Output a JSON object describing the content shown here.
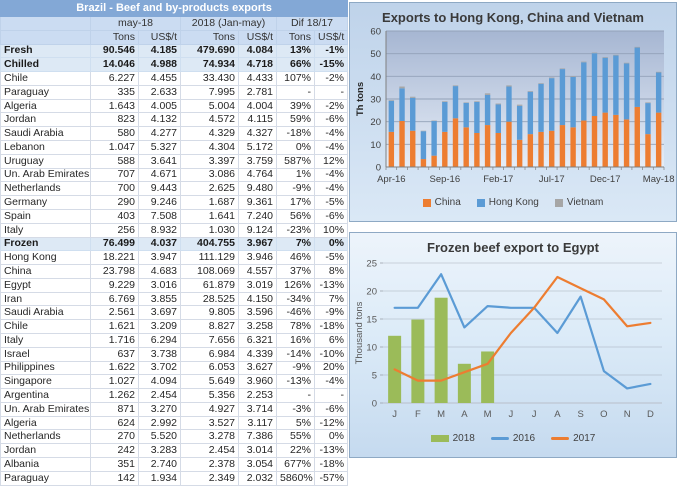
{
  "theme": {
    "table_title_bg": "#83A8D6",
    "table_header_bg": "#CBDCF2",
    "table_summary_bg": "#DDE9F5",
    "table_border": "#D5DBE6",
    "panel_border": "#8EA9C4",
    "panel1_bg_top": "#BFD3EA",
    "panel1_bg_bottom": "#DAE8F6",
    "plot1_bg_top": "#A6B6D2",
    "plot1_bg_bottom": "#E6EDF7",
    "panel2_bg_top": "#EDF4FB",
    "panel2_bg_bottom": "#C5DAEF"
  },
  "table": {
    "title": "Brazil - Beef and by-products exports",
    "column_groups": [
      "may-18",
      "2018 (Jan-may)",
      "Dif 18/17"
    ],
    "unit_headers": [
      "Tons",
      "US$/t",
      "Tons",
      "US$/t",
      "Tons",
      "US$/t"
    ],
    "rows": [
      {
        "label": "Fresh",
        "type": "summary",
        "values": [
          "90.546",
          "4.185",
          "479.690",
          "4.084",
          "13%",
          "-1%"
        ]
      },
      {
        "label": "Chilled",
        "type": "summary",
        "values": [
          "14.046",
          "4.988",
          "74.934",
          "4.718",
          "66%",
          "-15%"
        ]
      },
      {
        "label": "Chile",
        "type": "country",
        "values": [
          "6.227",
          "4.455",
          "33.430",
          "4.433",
          "107%",
          "-2%"
        ]
      },
      {
        "label": "Paraguay",
        "type": "country",
        "values": [
          "335",
          "2.633",
          "7.995",
          "2.781",
          "-",
          "-"
        ]
      },
      {
        "label": "Algeria",
        "type": "country",
        "values": [
          "1.643",
          "4.005",
          "5.004",
          "4.004",
          "39%",
          "-2%"
        ]
      },
      {
        "label": "Jordan",
        "type": "country",
        "values": [
          "823",
          "4.132",
          "4.572",
          "4.115",
          "59%",
          "-6%"
        ]
      },
      {
        "label": "Saudi Arabia",
        "type": "country",
        "values": [
          "580",
          "4.277",
          "4.329",
          "4.327",
          "-18%",
          "-4%"
        ]
      },
      {
        "label": "Lebanon",
        "type": "country",
        "values": [
          "1.047",
          "5.327",
          "4.304",
          "5.172",
          "0%",
          "-4%"
        ]
      },
      {
        "label": "Uruguay",
        "type": "country",
        "values": [
          "588",
          "3.641",
          "3.397",
          "3.759",
          "587%",
          "12%"
        ]
      },
      {
        "label": "Un. Arab Emirates",
        "type": "country",
        "values": [
          "707",
          "4.671",
          "3.086",
          "4.764",
          "1%",
          "-4%"
        ]
      },
      {
        "label": "Netherlands",
        "type": "country",
        "values": [
          "700",
          "9.443",
          "2.625",
          "9.480",
          "-9%",
          "-4%"
        ]
      },
      {
        "label": "Germany",
        "type": "country",
        "values": [
          "290",
          "9.246",
          "1.687",
          "9.361",
          "17%",
          "-5%"
        ]
      },
      {
        "label": "Spain",
        "type": "country",
        "values": [
          "403",
          "7.508",
          "1.641",
          "7.240",
          "56%",
          "-6%"
        ]
      },
      {
        "label": "Italy",
        "type": "country",
        "values": [
          "256",
          "8.932",
          "1.030",
          "9.124",
          "-23%",
          "10%"
        ]
      },
      {
        "label": "Frozen",
        "type": "summary",
        "values": [
          "76.499",
          "4.037",
          "404.755",
          "3.967",
          "7%",
          "0%"
        ]
      },
      {
        "label": "Hong Kong",
        "type": "country",
        "values": [
          "18.221",
          "3.947",
          "111.129",
          "3.946",
          "46%",
          "-5%"
        ]
      },
      {
        "label": "China",
        "type": "country",
        "values": [
          "23.798",
          "4.683",
          "108.069",
          "4.557",
          "37%",
          "8%"
        ]
      },
      {
        "label": "Egypt",
        "type": "country",
        "values": [
          "9.229",
          "3.016",
          "61.879",
          "3.019",
          "126%",
          "-13%"
        ]
      },
      {
        "label": "Iran",
        "type": "country",
        "values": [
          "6.769",
          "3.855",
          "28.525",
          "4.150",
          "-34%",
          "7%"
        ]
      },
      {
        "label": "Saudi Arabia",
        "type": "country",
        "values": [
          "2.561",
          "3.697",
          "9.805",
          "3.596",
          "-46%",
          "-9%"
        ]
      },
      {
        "label": "Chile",
        "type": "country",
        "values": [
          "1.621",
          "3.209",
          "8.827",
          "3.258",
          "78%",
          "-18%"
        ]
      },
      {
        "label": "Italy",
        "type": "country",
        "values": [
          "1.716",
          "6.294",
          "7.656",
          "6.321",
          "16%",
          "6%"
        ]
      },
      {
        "label": "Israel",
        "type": "country",
        "values": [
          "637",
          "3.738",
          "6.984",
          "4.339",
          "-14%",
          "-10%"
        ]
      },
      {
        "label": "Philippines",
        "type": "country",
        "values": [
          "1.622",
          "3.702",
          "6.053",
          "3.627",
          "-9%",
          "20%"
        ]
      },
      {
        "label": "Singapore",
        "type": "country",
        "values": [
          "1.027",
          "4.094",
          "5.649",
          "3.960",
          "-13%",
          "-4%"
        ]
      },
      {
        "label": "Argentina",
        "type": "country",
        "values": [
          "1.262",
          "2.454",
          "5.356",
          "2.253",
          "-",
          "-"
        ]
      },
      {
        "label": "Un. Arab Emirates",
        "type": "country",
        "values": [
          "871",
          "3.270",
          "4.927",
          "3.714",
          "-3%",
          "-6%"
        ]
      },
      {
        "label": "Algeria",
        "type": "country",
        "values": [
          "624",
          "2.992",
          "3.527",
          "3.117",
          "5%",
          "-12%"
        ]
      },
      {
        "label": "Netherlands",
        "type": "country",
        "values": [
          "270",
          "5.520",
          "3.278",
          "7.386",
          "55%",
          "0%"
        ]
      },
      {
        "label": "Jordan",
        "type": "country",
        "values": [
          "242",
          "3.283",
          "2.454",
          "3.014",
          "22%",
          "-13%"
        ]
      },
      {
        "label": "Albania",
        "type": "country",
        "values": [
          "351",
          "2.740",
          "2.378",
          "3.054",
          "677%",
          "-18%"
        ]
      },
      {
        "label": "Paraguay",
        "type": "country",
        "values": [
          "142",
          "1.934",
          "2.349",
          "2.032",
          "5860%",
          "-57%"
        ]
      }
    ]
  },
  "chart_data": [
    {
      "type": "bar",
      "subtype": "stacked",
      "title": "Exports to Hong Kong, China and Vietnam",
      "xlabel": "",
      "ylabel": "Th tons",
      "ylim": [
        0,
        60
      ],
      "ytick_step": 10,
      "grid": true,
      "legend_position": "bottom",
      "categories": [
        "Apr-16",
        "May-16",
        "Jun-16",
        "Jul-16",
        "Aug-16",
        "Sep-16",
        "Oct-16",
        "Nov-16",
        "Dec-16",
        "Jan-17",
        "Feb-17",
        "Mar-17",
        "Apr-17",
        "May-17",
        "Jun-17",
        "Jul-17",
        "Aug-17",
        "Sep-17",
        "Oct-17",
        "Nov-17",
        "Dec-17",
        "Jan-18",
        "Feb-18",
        "Mar-18",
        "Apr-18",
        "May-18"
      ],
      "xtick_indices": [
        0,
        5,
        10,
        15,
        20,
        25
      ],
      "xtick_labels": [
        "Apr-16",
        "Sep-16",
        "Feb-17",
        "Jul-17",
        "Dec-17",
        "May-18"
      ],
      "series": [
        {
          "name": "China",
          "color": "#ED7D31",
          "values": [
            15.5,
            20.3,
            16,
            3.5,
            5,
            15.5,
            21.5,
            17.5,
            15,
            18.5,
            15,
            20,
            12,
            14.5,
            15.5,
            16,
            18.5,
            17.5,
            20.5,
            22.5,
            24,
            23,
            21,
            26.5,
            14.5,
            24
          ]
        },
        {
          "name": "Hong Kong",
          "color": "#5B9BD5",
          "values": [
            13.7,
            14.4,
            14.5,
            12.3,
            15.3,
            13.2,
            14.2,
            10.8,
            13.7,
            13.3,
            12.6,
            15.5,
            15,
            18.7,
            21.2,
            23.2,
            24.7,
            22.2,
            25.7,
            27.7,
            24.2,
            26.2,
            24.7,
            26.2,
            13.7,
            17.7
          ]
        },
        {
          "name": "Vietnam",
          "color": "#A6A6A6",
          "values": [
            0.3,
            0.8,
            0.5,
            0.2,
            0.2,
            0.3,
            0.3,
            0.2,
            0.3,
            0.7,
            0.4,
            0.5,
            0.5,
            0.3,
            0.3,
            0.3,
            0.3,
            0.3,
            0.3,
            0.3,
            0.3,
            0.3,
            0.3,
            0.3,
            0.3,
            0.3
          ]
        }
      ]
    },
    {
      "type": "line",
      "subtype": "combo",
      "title": "Frozen beef export to Egypt",
      "xlabel": "",
      "ylabel": "Thousand tons",
      "ylim": [
        0,
        25
      ],
      "ytick_step": 5,
      "grid": true,
      "legend_position": "bottom",
      "categories": [
        "J",
        "F",
        "M",
        "A",
        "M",
        "J",
        "J",
        "A",
        "S",
        "O",
        "N",
        "D"
      ],
      "series": [
        {
          "name": "2018",
          "kind": "bar",
          "color": "#9BBB59",
          "values": [
            12,
            14.9,
            18.8,
            7,
            9.2,
            null,
            null,
            null,
            null,
            null,
            null,
            null
          ]
        },
        {
          "name": "2016",
          "kind": "line",
          "color": "#5B9BD5",
          "values": [
            17,
            17,
            23,
            13.5,
            17.3,
            17,
            17,
            12.5,
            19,
            5.7,
            2.6,
            3.4
          ]
        },
        {
          "name": "2017",
          "kind": "line",
          "color": "#ED7D31",
          "values": [
            6,
            4,
            4,
            5.5,
            7,
            12.5,
            17,
            22.5,
            20.5,
            18.5,
            13.7,
            14.3
          ]
        }
      ]
    }
  ]
}
